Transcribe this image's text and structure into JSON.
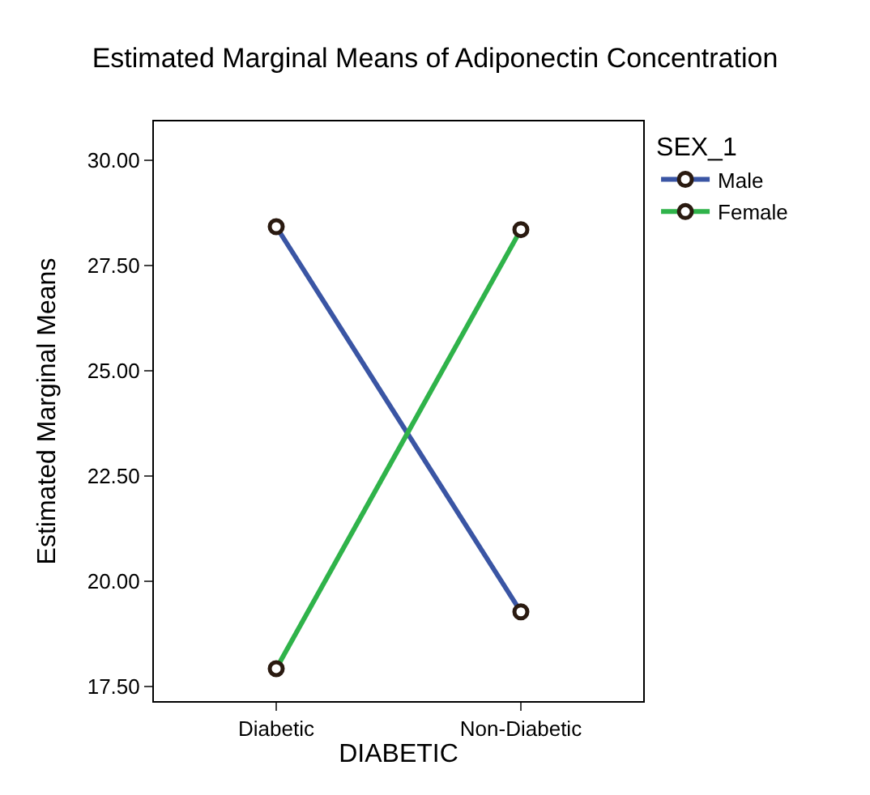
{
  "chart_data": {
    "type": "line",
    "title": "Estimated Marginal Means of Adiponectin Concentration",
    "xlabel": "DIABETIC",
    "ylabel": "Estimated Marginal Means",
    "legend_title": "SEX_1",
    "categories": [
      "Diabetic",
      "Non-Diabetic"
    ],
    "series": [
      {
        "name": "Male",
        "color": "#3a55a4",
        "values": [
          28.42,
          19.27
        ]
      },
      {
        "name": "Female",
        "color": "#2fb34a",
        "values": [
          17.92,
          28.35
        ]
      }
    ],
    "ylim": [
      17.15,
      30.92
    ],
    "yticks": [
      {
        "value": 17.5,
        "label": "17.50"
      },
      {
        "value": 20,
        "label": "20.00"
      },
      {
        "value": 22.5,
        "label": "22.50"
      },
      {
        "value": 25,
        "label": "25.00"
      },
      {
        "value": 27.5,
        "label": "27.50"
      },
      {
        "value": 30,
        "label": "30.00"
      }
    ],
    "legend": "top right",
    "marker": "circle",
    "line_style": "solid"
  }
}
